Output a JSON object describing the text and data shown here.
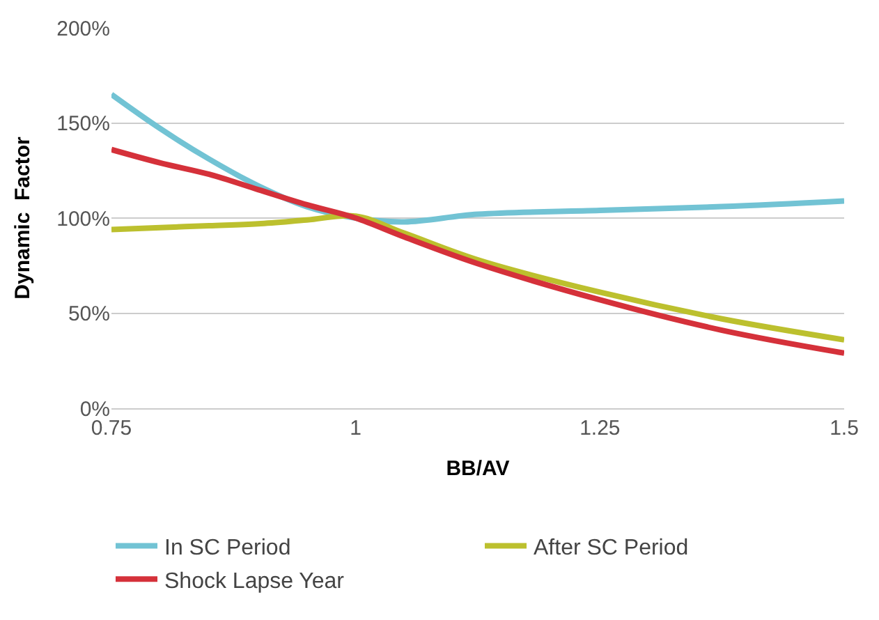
{
  "chart_data": {
    "type": "line",
    "xlabel": "BB/AV",
    "ylabel": "Dynamic  Factor",
    "x": [
      0.75,
      0.8,
      0.85,
      0.9,
      0.95,
      1.0,
      1.05,
      1.125,
      1.25,
      1.375,
      1.5
    ],
    "series": [
      {
        "name": "In SC Period",
        "color": "#72c3d4",
        "values": [
          165,
          147,
          131,
          117,
          106,
          100,
          98,
          102,
          104,
          106,
          109
        ]
      },
      {
        "name": "After SC Period",
        "color": "#bcc02e",
        "values": [
          94,
          95,
          96,
          97,
          99,
          101,
          92,
          78,
          61,
          47,
          36
        ]
      },
      {
        "name": "Shock Lapse Year",
        "color": "#d5313a",
        "values": [
          136,
          129,
          123,
          115,
          107,
          100,
          90,
          76,
          57,
          41,
          29
        ]
      }
    ],
    "xlim": [
      0.75,
      1.5
    ],
    "xticks": [
      0.75,
      1,
      1.25,
      1.5
    ],
    "ylim": [
      0,
      200
    ],
    "yticks": [
      {
        "value": 0,
        "label": "0%"
      },
      {
        "value": 50,
        "label": "50%"
      },
      {
        "value": 100,
        "label": "100%"
      },
      {
        "value": 150,
        "label": "150%"
      },
      {
        "value": 200,
        "label": "200%"
      }
    ],
    "grid": "y",
    "legend": "bottom",
    "marker": "none",
    "line_style": "solid"
  }
}
